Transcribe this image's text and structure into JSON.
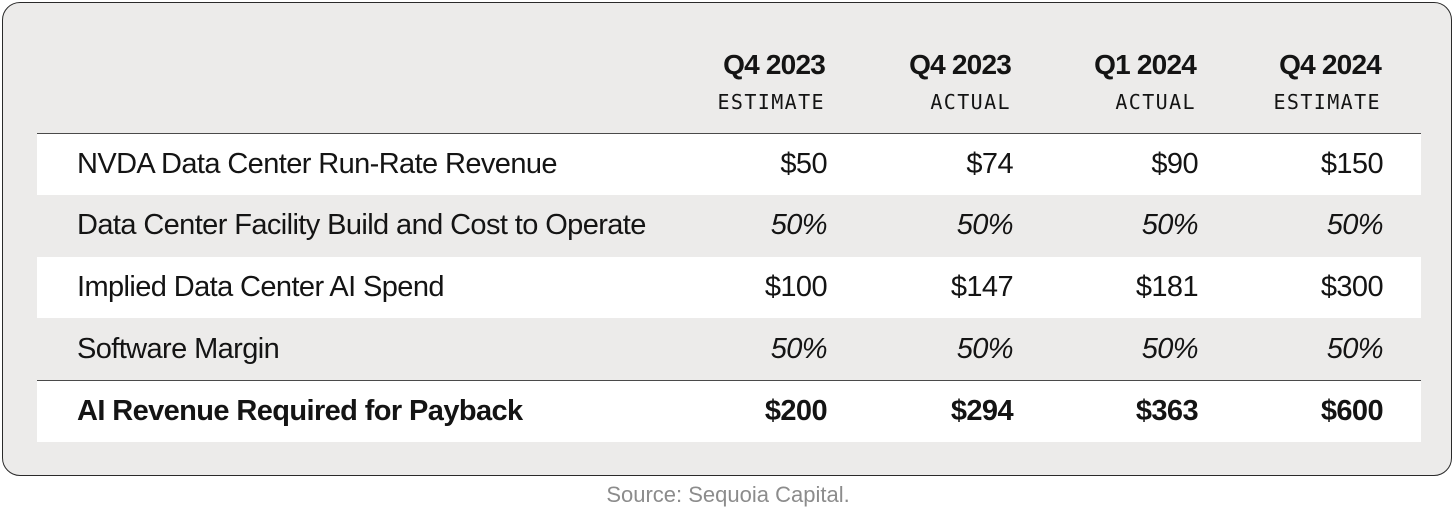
{
  "table": {
    "columns": [
      {
        "period": "Q4 2023",
        "kind": "ESTIMATE"
      },
      {
        "period": "Q4 2023",
        "kind": "ACTUAL"
      },
      {
        "period": "Q1 2024",
        "kind": "ACTUAL"
      },
      {
        "period": "Q4 2024",
        "kind": "ESTIMATE"
      }
    ],
    "rows": [
      {
        "label": "NVDA Data Center Run-Rate Revenue",
        "values": [
          "$50",
          "$74",
          "$90",
          "$150"
        ]
      },
      {
        "label": "Data Center Facility Build and Cost to Operate",
        "values": [
          "50%",
          "50%",
          "50%",
          "50%"
        ]
      },
      {
        "label": "Implied Data Center AI Spend",
        "values": [
          "$100",
          "$147",
          "$181",
          "$300"
        ]
      },
      {
        "label": "Software Margin",
        "values": [
          "50%",
          "50%",
          "50%",
          "50%"
        ]
      },
      {
        "label": "AI Revenue Required for Payback",
        "values": [
          "$200",
          "$294",
          "$363",
          "$600"
        ]
      }
    ]
  },
  "source": "Source: Sequoia Capital."
}
